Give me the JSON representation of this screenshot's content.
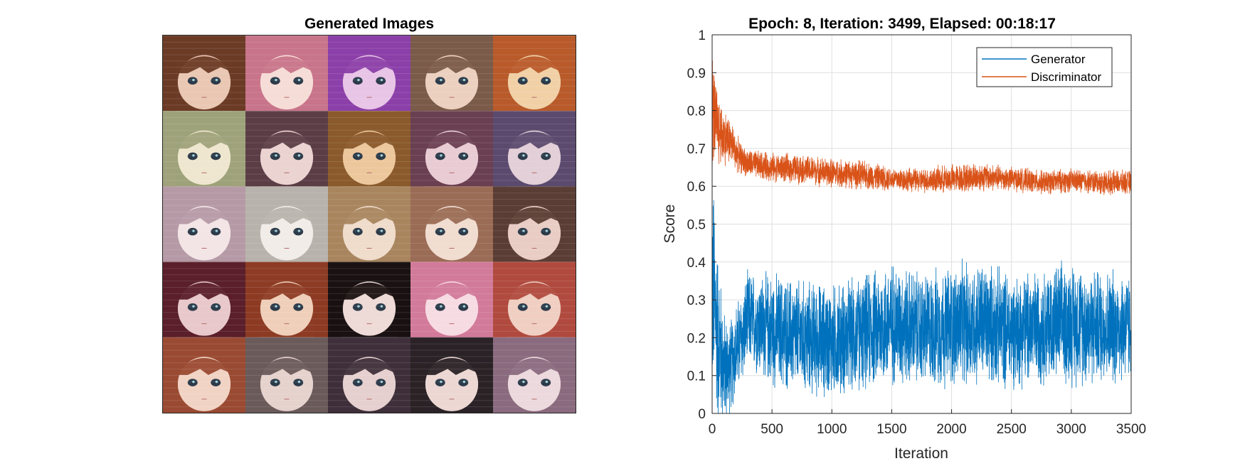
{
  "left_panel": {
    "title": "Generated Images",
    "grid": {
      "rows": 5,
      "cols": 5
    },
    "tiles": [
      {
        "hair": "#6b3b26",
        "skin": "#e9c7b3"
      },
      {
        "hair": "#c8748a",
        "skin": "#f6dcd6"
      },
      {
        "hair": "#8b3fa8",
        "skin": "#e8c4e6"
      },
      {
        "hair": "#7a5a48",
        "skin": "#ecd0bf"
      },
      {
        "hair": "#b85a2a",
        "skin": "#f1d0a6"
      },
      {
        "hair": "#9ea27a",
        "skin": "#efe6cf"
      },
      {
        "hair": "#5b3d46",
        "skin": "#ead3d0"
      },
      {
        "hair": "#8a5a2c",
        "skin": "#ecc79c"
      },
      {
        "hair": "#6a3f52",
        "skin": "#e8cbd3"
      },
      {
        "hair": "#5b4a6e",
        "skin": "#e2cfd7"
      },
      {
        "hair": "#b59aa6",
        "skin": "#f3e4e6"
      },
      {
        "hair": "#b7b3ac",
        "skin": "#f1ece7"
      },
      {
        "hair": "#a8855e",
        "skin": "#f0dccb"
      },
      {
        "hair": "#9a6b55",
        "skin": "#f1dcd0"
      },
      {
        "hair": "#5a3d34",
        "skin": "#e9cdc5"
      },
      {
        "hair": "#5a1f2a",
        "skin": "#e8c8cb"
      },
      {
        "hair": "#8d3b24",
        "skin": "#efcfb9"
      },
      {
        "hair": "#1a1212",
        "skin": "#eedad6"
      },
      {
        "hair": "#d27a9a",
        "skin": "#f7dbe3"
      },
      {
        "hair": "#b04a3e",
        "skin": "#f0cfc2"
      },
      {
        "hair": "#9a4a32",
        "skin": "#f1d3c4"
      },
      {
        "hair": "#6a5a5a",
        "skin": "#e6d2cd"
      },
      {
        "hair": "#3e2f3a",
        "skin": "#e6d0cf"
      },
      {
        "hair": "#2a2226",
        "skin": "#ecd7d3"
      },
      {
        "hair": "#8a6a7e",
        "skin": "#ecd9dd"
      }
    ]
  },
  "chart_data": {
    "type": "line",
    "title": "Epoch: 8, Iteration: 3499, Elapsed: 00:18:17",
    "xlabel": "Iteration",
    "ylabel": "Score",
    "xlim": [
      0,
      3500
    ],
    "ylim": [
      0,
      1
    ],
    "xticks": [
      "0",
      "500",
      "1000",
      "1500",
      "2000",
      "2500",
      "3000",
      "3500"
    ],
    "yticks": [
      "0",
      "0.1",
      "0.2",
      "0.3",
      "0.4",
      "0.5",
      "0.6",
      "0.7",
      "0.8",
      "0.9",
      "1"
    ],
    "grid": true,
    "legend": "top-right",
    "series": [
      {
        "name": "Generator",
        "color": "#0072bd",
        "x": [
          0,
          50,
          100,
          150,
          200,
          250,
          300,
          500,
          750,
          1000,
          1250,
          1500,
          1750,
          2000,
          2250,
          2500,
          2750,
          3000,
          3250,
          3499
        ],
        "y": [
          0.35,
          0.2,
          0.12,
          0.12,
          0.17,
          0.2,
          0.25,
          0.22,
          0.2,
          0.19,
          0.21,
          0.24,
          0.22,
          0.23,
          0.24,
          0.22,
          0.23,
          0.24,
          0.23,
          0.23
        ],
        "spread": [
          0.25,
          0.18,
          0.12,
          0.1,
          0.1,
          0.1,
          0.1,
          0.12,
          0.12,
          0.12,
          0.12,
          0.13,
          0.12,
          0.13,
          0.13,
          0.12,
          0.12,
          0.13,
          0.12,
          0.12
        ]
      },
      {
        "name": "Discriminator",
        "color": "#d95319",
        "x": [
          0,
          50,
          100,
          150,
          200,
          250,
          300,
          500,
          750,
          1000,
          1250,
          1500,
          1750,
          2000,
          2250,
          2500,
          2750,
          3000,
          3250,
          3499
        ],
        "y": [
          0.8,
          0.75,
          0.73,
          0.72,
          0.69,
          0.67,
          0.66,
          0.65,
          0.645,
          0.635,
          0.63,
          0.62,
          0.615,
          0.62,
          0.625,
          0.62,
          0.61,
          0.615,
          0.61,
          0.61
        ],
        "spread": [
          0.12,
          0.08,
          0.06,
          0.05,
          0.04,
          0.03,
          0.03,
          0.03,
          0.03,
          0.03,
          0.03,
          0.025,
          0.025,
          0.03,
          0.03,
          0.025,
          0.025,
          0.025,
          0.025,
          0.025
        ]
      }
    ]
  }
}
